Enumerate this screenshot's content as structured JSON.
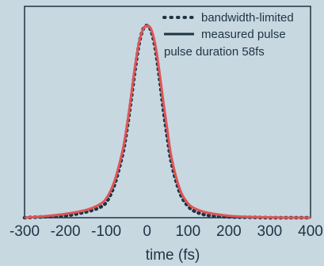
{
  "chart_data": {
    "type": "line",
    "xlabel": "time (fs)",
    "ylabel": "",
    "xlim": [
      -300,
      400
    ],
    "ylim": [
      0,
      1.1
    ],
    "x_ticks": [
      "-300",
      "-200",
      "-100",
      "0",
      "100",
      "200",
      "300",
      "400"
    ],
    "annotation": "pulse duration 58fs",
    "legend_position": "top-right",
    "grid": false,
    "series": [
      {
        "name": "bandwidth-limited",
        "style": "dotted",
        "color": "#1f3443",
        "x": [
          -300,
          -250,
          -200,
          -150,
          -120,
          -100,
          -80,
          -60,
          -50,
          -40,
          -30,
          -20,
          -10,
          0,
          10,
          20,
          30,
          40,
          50,
          60,
          80,
          100,
          120,
          150,
          200,
          250,
          300,
          350,
          400
        ],
        "y": [
          0.0,
          0.005,
          0.01,
          0.03,
          0.05,
          0.08,
          0.17,
          0.33,
          0.45,
          0.6,
          0.76,
          0.9,
          0.98,
          1.0,
          0.97,
          0.88,
          0.73,
          0.56,
          0.41,
          0.28,
          0.13,
          0.06,
          0.03,
          0.012,
          0.004,
          0.002,
          0.0,
          0.0,
          0.0
        ]
      },
      {
        "name": "measured pulse",
        "style": "solid",
        "color": "#1f3443",
        "overlay_color": "#e05456",
        "x": [
          -300,
          -250,
          -200,
          -150,
          -120,
          -100,
          -80,
          -60,
          -50,
          -40,
          -30,
          -20,
          -10,
          0,
          10,
          20,
          30,
          40,
          50,
          60,
          80,
          100,
          120,
          150,
          200,
          250,
          300,
          350,
          400
        ],
        "y": [
          0.0,
          0.008,
          0.02,
          0.04,
          0.065,
          0.1,
          0.19,
          0.35,
          0.47,
          0.62,
          0.78,
          0.91,
          0.98,
          1.0,
          0.98,
          0.9,
          0.76,
          0.6,
          0.45,
          0.31,
          0.15,
          0.075,
          0.045,
          0.025,
          0.01,
          0.004,
          0.002,
          0.0,
          0.0
        ]
      }
    ]
  }
}
